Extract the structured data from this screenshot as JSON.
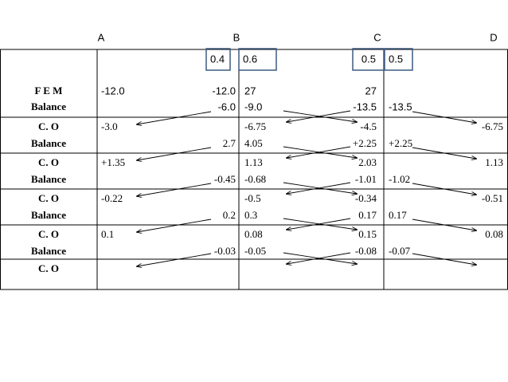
{
  "header": {
    "columns": [
      "A",
      "B",
      "C",
      "D"
    ],
    "distribution_factors": [
      "0.4",
      "0.6",
      "0.5",
      "0.5"
    ]
  },
  "table": {
    "rows": [
      {
        "label": "F E M",
        "values": [
          "-12.0",
          "-12.0",
          "27",
          "27",
          null,
          null
        ]
      },
      {
        "label": "Balance",
        "values": [
          null,
          "-6.0",
          "-9.0",
          "-13.5",
          "-13.5",
          null
        ]
      },
      {
        "label": "C. O",
        "values": [
          "-3.0",
          null,
          "-6.75",
          "-4.5",
          null,
          "-6.75"
        ]
      },
      {
        "label": "Balance",
        "values": [
          null,
          "2.7",
          "4.05",
          "+2.25",
          "+2.25",
          null
        ]
      },
      {
        "label": "C. O",
        "values": [
          "+1.35",
          null,
          "1.13",
          "2.03",
          null,
          "1.13"
        ]
      },
      {
        "label": "Balance",
        "values": [
          null,
          "-0.45",
          "-0.68",
          "-1.01",
          "-1.02",
          null
        ]
      },
      {
        "label": "C. O",
        "values": [
          "-0.22",
          null,
          "-0.5",
          "-0.34",
          null,
          "-0.51"
        ]
      },
      {
        "label": "Balance",
        "values": [
          null,
          "0.2",
          "0.3",
          "0.17",
          "0.17",
          null
        ]
      },
      {
        "label": "C. O",
        "values": [
          "0.1",
          null,
          "0.08",
          "0.15",
          null,
          "0.08"
        ]
      },
      {
        "label": "Balance",
        "values": [
          null,
          "-0.03",
          "-0.05",
          "-0.08",
          "-0.07",
          null
        ]
      },
      {
        "label": "C. O",
        "values": [
          null,
          null,
          null,
          null,
          null,
          null
        ]
      }
    ]
  }
}
